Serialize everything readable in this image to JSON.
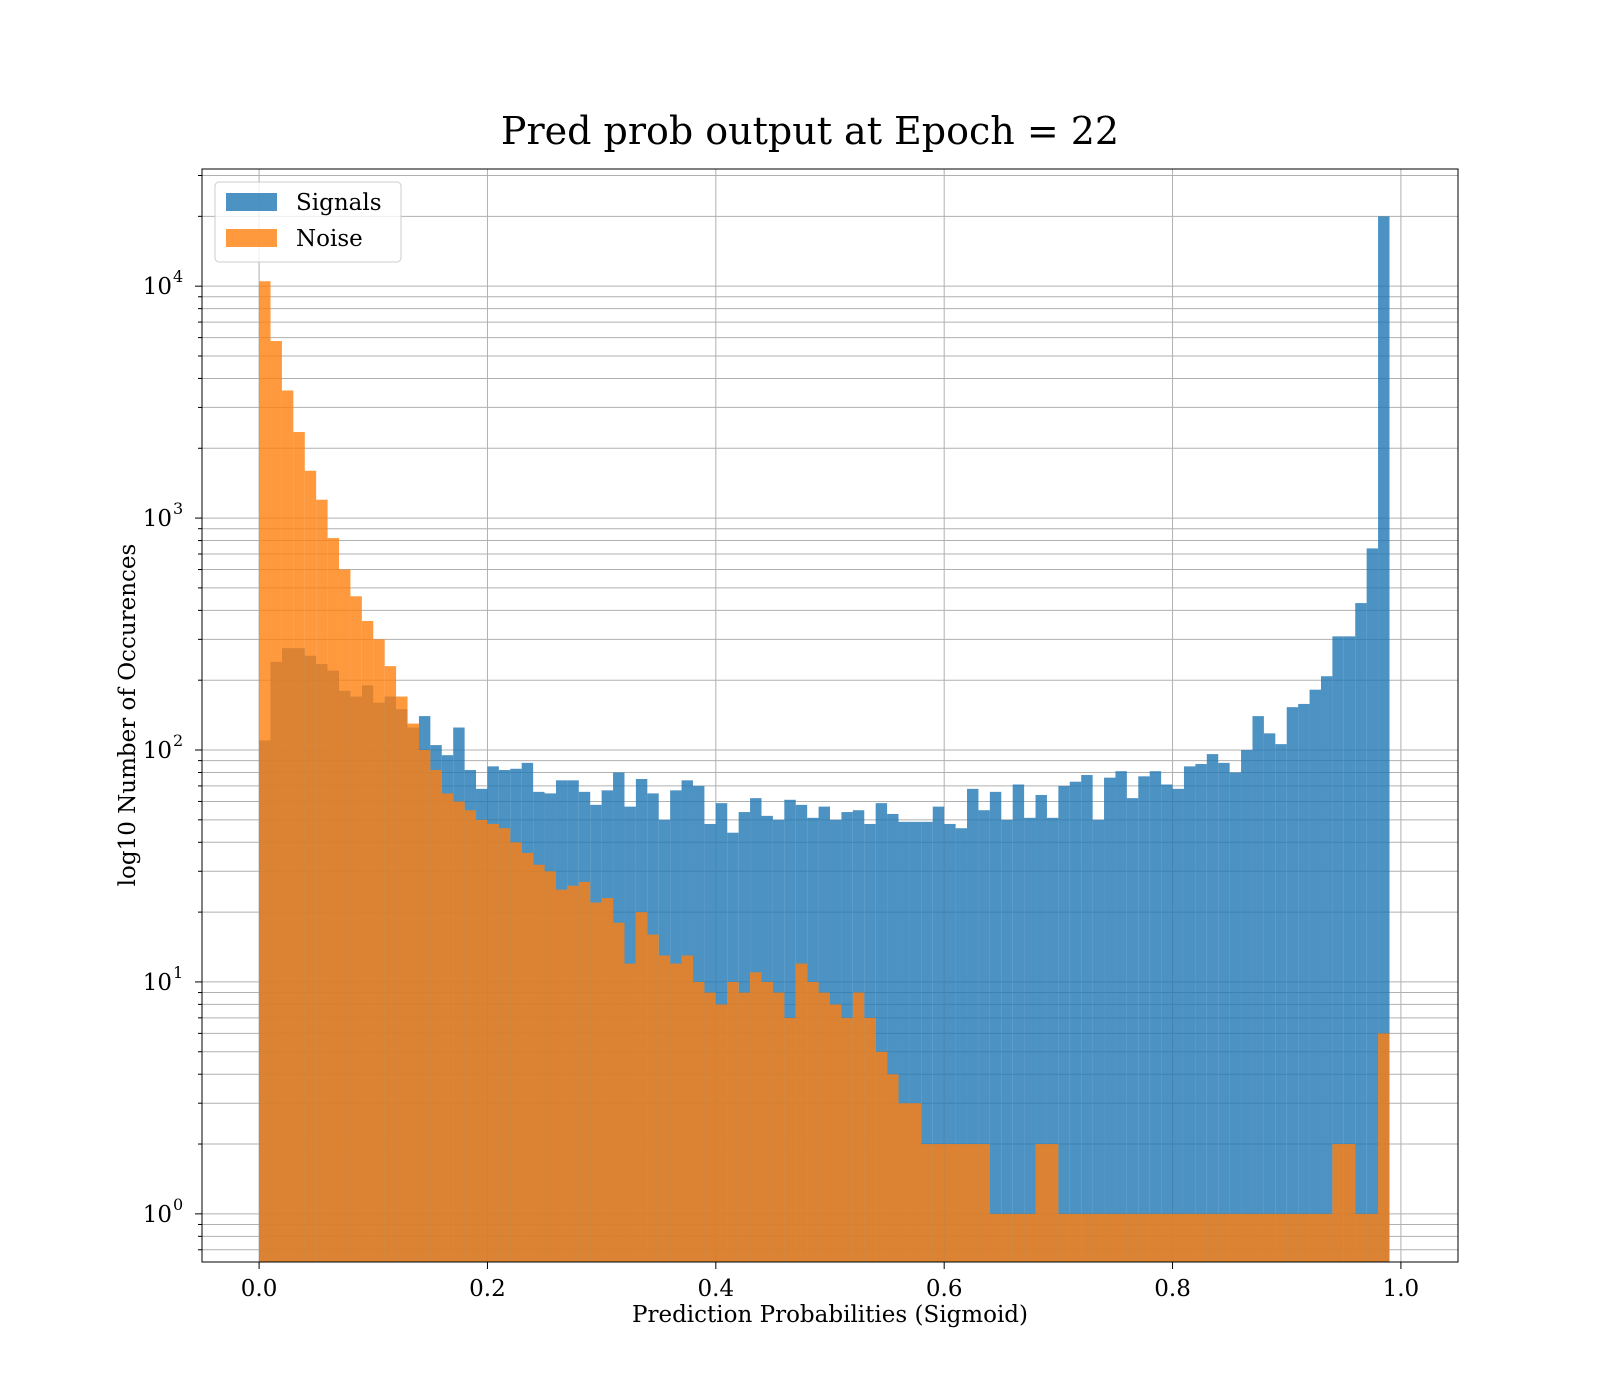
{
  "chart_data": {
    "type": "bar",
    "title": "Pred prob output at Epoch = 22",
    "xlabel": "Prediction Probabilities (Sigmoid)",
    "ylabel": "log10 Number of Occurences",
    "xlim": [
      -0.05,
      1.05
    ],
    "ylim": [
      0.62,
      32000
    ],
    "yscale": "log",
    "grid": true,
    "legend_position": "top-left",
    "bin_range": [
      0,
      1
    ],
    "bin_count": 100,
    "xticks": [
      {
        "value": 0.0,
        "label": "0.0"
      },
      {
        "value": 0.2,
        "label": "0.2"
      },
      {
        "value": 0.4,
        "label": "0.4"
      },
      {
        "value": 0.6,
        "label": "0.6"
      },
      {
        "value": 0.8,
        "label": "0.8"
      },
      {
        "value": 1.0,
        "label": "1.0"
      }
    ],
    "yticks": [
      {
        "value": 1,
        "base": "10",
        "exp": "0"
      },
      {
        "value": 10,
        "base": "10",
        "exp": "1"
      },
      {
        "value": 100,
        "base": "10",
        "exp": "2"
      },
      {
        "value": 1000,
        "base": "10",
        "exp": "3"
      },
      {
        "value": 10000,
        "base": "10",
        "exp": "4"
      }
    ],
    "series": [
      {
        "name": "Signals",
        "color": "#1f77b4",
        "opacity": 0.8,
        "values": [
          110,
          240,
          275,
          275,
          255,
          235,
          220,
          180,
          170,
          190,
          160,
          170,
          150,
          125,
          140,
          105,
          95,
          125,
          82,
          68,
          85,
          82,
          83,
          88,
          66,
          65,
          74,
          74,
          66,
          58,
          67,
          80,
          57,
          75,
          65,
          50,
          67,
          74,
          70,
          48,
          59,
          44,
          54,
          62,
          52,
          50,
          61,
          58,
          51,
          57,
          50,
          54,
          55,
          48,
          59,
          53,
          49,
          49,
          49,
          57,
          48,
          46,
          68,
          55,
          66,
          50,
          71,
          51,
          64,
          51,
          70,
          73,
          78,
          50,
          76,
          81,
          62,
          77,
          81,
          71,
          68,
          85,
          87,
          96,
          88,
          80,
          100,
          140,
          118,
          106,
          153,
          158,
          182,
          208,
          309,
          309,
          430,
          740,
          20000,
          0
        ]
      },
      {
        "name": "Noise",
        "color": "#ff7f0e",
        "opacity": 0.8,
        "values": [
          10500,
          5800,
          3550,
          2350,
          1600,
          1200,
          820,
          600,
          460,
          360,
          300,
          230,
          170,
          130,
          100,
          82,
          65,
          60,
          55,
          50,
          48,
          46,
          40,
          36,
          32,
          30,
          25,
          26,
          27,
          22,
          23,
          18,
          12,
          20,
          16,
          13,
          12,
          13,
          10,
          9,
          8,
          10,
          9,
          11,
          10,
          9,
          7,
          12,
          10,
          9,
          8,
          7,
          9,
          7,
          5,
          4,
          3,
          3,
          2,
          2,
          2,
          2,
          2,
          2,
          1,
          1,
          1,
          1,
          2,
          2,
          1,
          1,
          1,
          1,
          1,
          1,
          1,
          1,
          1,
          1,
          1,
          1,
          1,
          1,
          1,
          1,
          1,
          1,
          1,
          1,
          1,
          1,
          1,
          1,
          2,
          2,
          1,
          1,
          6,
          0
        ]
      }
    ]
  }
}
